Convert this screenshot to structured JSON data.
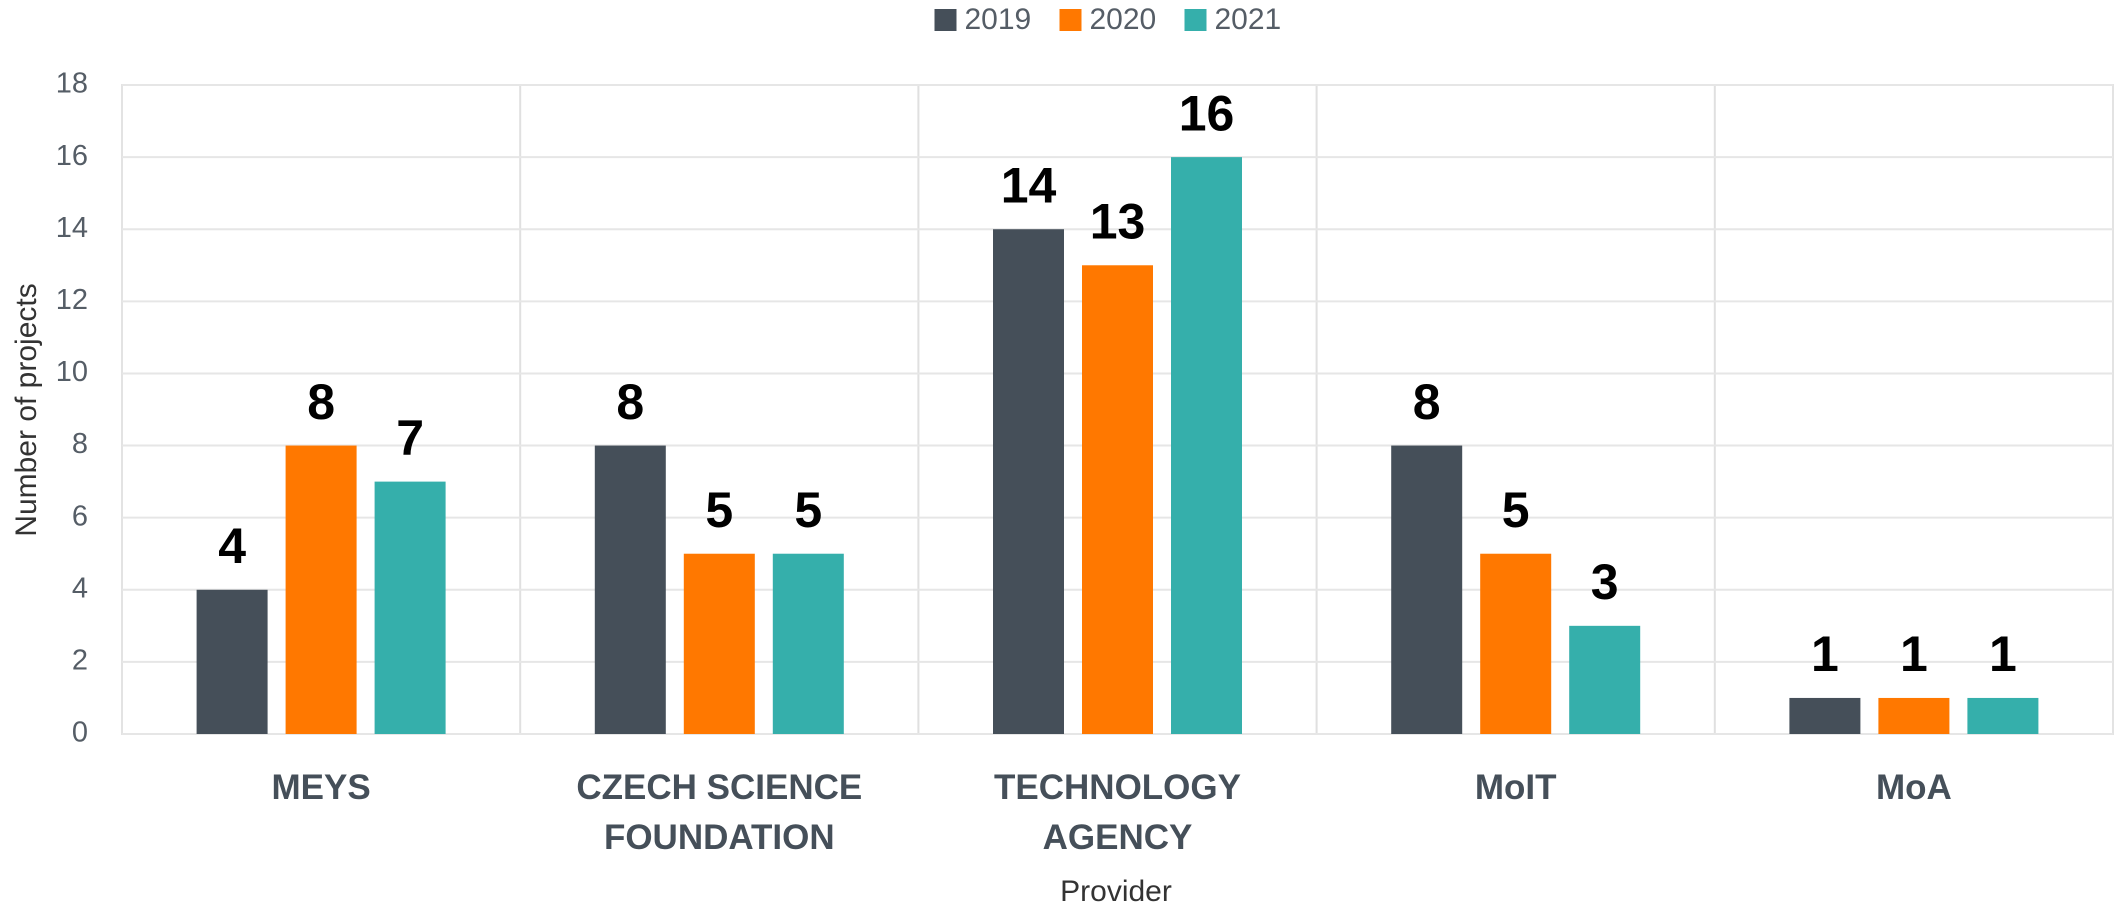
{
  "chart_data": {
    "type": "bar",
    "categories": [
      "MEYS",
      "CZECH SCIENCE FOUNDATION",
      "TECHNOLOGY AGENCY",
      "MoIT",
      "MoA"
    ],
    "series": [
      {
        "name": "2019",
        "color": "#454f59",
        "values": [
          4,
          8,
          14,
          8,
          1
        ]
      },
      {
        "name": "2020",
        "color": "#ff7800",
        "values": [
          8,
          5,
          13,
          5,
          1
        ]
      },
      {
        "name": "2021",
        "color": "#35afab",
        "values": [
          7,
          5,
          16,
          3,
          1
        ]
      }
    ],
    "x_label": "Provider",
    "y_label": "Number of projects",
    "ylim": [
      0,
      18
    ],
    "yticks": [
      0,
      2,
      4,
      6,
      8,
      10,
      12,
      14,
      16,
      18
    ],
    "grid": true,
    "legend": "top"
  }
}
